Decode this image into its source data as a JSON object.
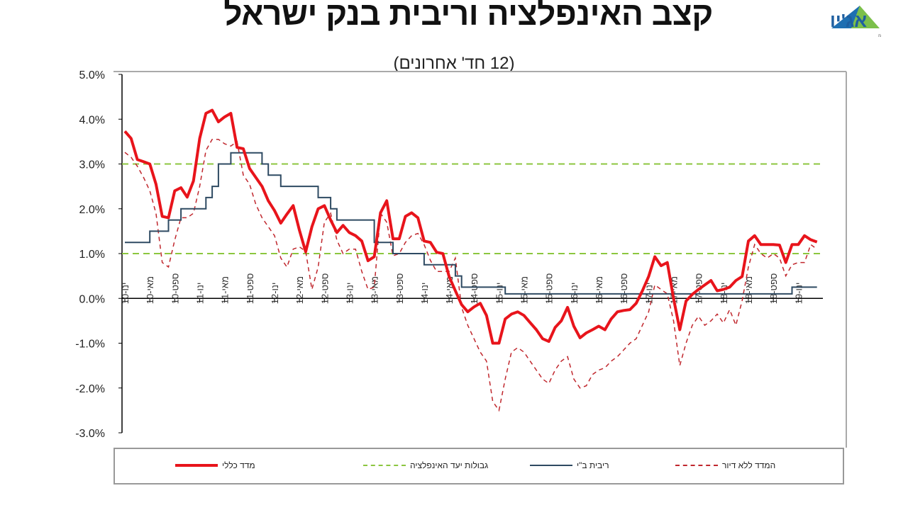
{
  "header": {
    "title": "קצב האינפלציה וריבית בנק ישראל",
    "subtitle": "(12 חד' אחרונים)",
    "logo_text": "אג'יו",
    "logo_tagline": "ניהול סיכונים והתחשבנות פיננסית בע\"מ"
  },
  "colors": {
    "cpi": "#e8141b",
    "target": "#8cc63f",
    "rate": "#2e4a62",
    "core": "#c0272d"
  },
  "chart_data": {
    "type": "line",
    "title": "קצב האינפלציה וריבית בנק ישראל",
    "subtitle": "(12 חד' אחרונים)",
    "xlabel": "",
    "ylabel": "",
    "x_start": "2010-01",
    "x_step": "month",
    "ylim": [
      -3.0,
      5.0
    ],
    "y_ticks": [
      "-3.0%",
      "-2.0%",
      "-1.0%",
      "0.0%",
      "1.0%",
      "2.0%",
      "3.0%",
      "4.0%",
      "5.0%"
    ],
    "x_tick_labels": [
      "ינו-10",
      "מאי-10",
      "ספט-10",
      "ינו-11",
      "מאי-11",
      "ספט-11",
      "ינו-12",
      "מאי-12",
      "ספט-12",
      "ינו-13",
      "מאי-13",
      "ספט-13",
      "ינו-14",
      "מאי-14",
      "ספט-14",
      "ינו-15",
      "מאי-15",
      "ספט-15",
      "ינו-16",
      "מאי-16",
      "ספט-16",
      "ינו-17",
      "מאי-17",
      "ספט-17",
      "ינו-18",
      "מאי-18",
      "ספט-18",
      "ינו-19"
    ],
    "legend_position": "bottom",
    "series": [
      {
        "name": "מדד כללי",
        "style": "solid-thick",
        "values": [
          3.73,
          3.57,
          3.1,
          3.05,
          3.0,
          2.55,
          1.83,
          1.8,
          2.4,
          2.47,
          2.26,
          2.62,
          3.57,
          4.13,
          4.2,
          3.94,
          4.05,
          4.13,
          3.37,
          3.34,
          2.9,
          2.7,
          2.5,
          2.18,
          1.96,
          1.68,
          1.88,
          2.07,
          1.52,
          1.04,
          1.6,
          2.0,
          2.07,
          1.75,
          1.47,
          1.63,
          1.47,
          1.4,
          1.28,
          0.84,
          0.93,
          1.91,
          2.18,
          1.33,
          1.33,
          1.83,
          1.91,
          1.8,
          1.28,
          1.25,
          1.03,
          1.0,
          0.49,
          0.17,
          -0.14,
          -0.3,
          -0.19,
          -0.11,
          -0.38,
          -1.0,
          -1.0,
          -0.46,
          -0.35,
          -0.3,
          -0.38,
          -0.54,
          -0.7,
          -0.9,
          -0.96,
          -0.65,
          -0.5,
          -0.2,
          -0.62,
          -0.88,
          -0.77,
          -0.7,
          -0.62,
          -0.7,
          -0.46,
          -0.3,
          -0.27,
          -0.25,
          -0.11,
          0.17,
          0.49,
          0.93,
          0.73,
          0.8,
          0.0,
          -0.7,
          -0.06,
          0.09,
          0.2,
          0.3,
          0.4,
          0.17,
          0.2,
          0.25,
          0.4,
          0.49,
          1.28,
          1.4,
          1.2,
          1.2,
          1.2,
          1.19,
          0.8,
          1.2,
          1.2,
          1.4,
          1.31,
          1.26
        ]
      },
      {
        "name": "גבולות יעד האינפלציה",
        "style": "dashed-green",
        "values_lower": 1.0,
        "values_upper": 3.0
      },
      {
        "name": "ריבית ב\"י",
        "style": "solid-thin",
        "values": [
          1.25,
          1.25,
          1.25,
          1.25,
          1.5,
          1.5,
          1.5,
          1.75,
          1.75,
          2.0,
          2.0,
          2.0,
          2.0,
          2.25,
          2.5,
          3.0,
          3.0,
          3.25,
          3.25,
          3.25,
          3.25,
          3.25,
          3.0,
          2.75,
          2.75,
          2.5,
          2.5,
          2.5,
          2.5,
          2.5,
          2.5,
          2.25,
          2.25,
          2.0,
          1.75,
          1.75,
          1.75,
          1.75,
          1.75,
          1.75,
          1.25,
          1.25,
          1.25,
          1.0,
          1.0,
          1.0,
          1.0,
          1.0,
          0.75,
          0.75,
          0.75,
          0.75,
          0.75,
          0.5,
          0.25,
          0.25,
          0.25,
          0.25,
          0.25,
          0.25,
          0.25,
          0.1,
          0.1,
          0.1,
          0.1,
          0.1,
          0.1,
          0.1,
          0.1,
          0.1,
          0.1,
          0.1,
          0.1,
          0.1,
          0.1,
          0.1,
          0.1,
          0.1,
          0.1,
          0.1,
          0.1,
          0.1,
          0.1,
          0.1,
          0.1,
          0.1,
          0.1,
          0.1,
          0.1,
          0.1,
          0.1,
          0.1,
          0.1,
          0.1,
          0.1,
          0.1,
          0.1,
          0.1,
          0.1,
          0.1,
          0.1,
          0.1,
          0.1,
          0.1,
          0.1,
          0.1,
          0.1,
          0.25,
          0.25,
          0.25,
          0.25,
          0.25
        ]
      },
      {
        "name": "המדד ללא דיור",
        "style": "dashed-red",
        "values": [
          3.26,
          3.15,
          2.95,
          2.7,
          2.4,
          1.9,
          0.8,
          0.7,
          1.3,
          1.8,
          1.8,
          1.9,
          2.5,
          3.3,
          3.55,
          3.55,
          3.45,
          3.4,
          3.5,
          2.75,
          2.55,
          2.1,
          1.8,
          1.6,
          1.4,
          0.9,
          0.7,
          1.1,
          1.15,
          1.05,
          0.2,
          0.7,
          1.7,
          1.9,
          1.3,
          1.0,
          1.1,
          1.1,
          0.6,
          0.2,
          0.25,
          1.9,
          1.7,
          0.95,
          1.0,
          1.25,
          1.4,
          1.45,
          1.2,
          0.85,
          0.6,
          0.6,
          0.6,
          0.9,
          -0.2,
          -0.6,
          -0.9,
          -1.2,
          -1.4,
          -2.3,
          -2.5,
          -1.8,
          -1.2,
          -1.1,
          -1.2,
          -1.4,
          -1.6,
          -1.8,
          -1.9,
          -1.6,
          -1.4,
          -1.3,
          -1.8,
          -2.0,
          -1.95,
          -1.7,
          -1.6,
          -1.55,
          -1.4,
          -1.3,
          -1.15,
          -1.0,
          -0.9,
          -0.6,
          -0.3,
          0.3,
          0.2,
          0.1,
          -0.5,
          -1.5,
          -1.0,
          -0.6,
          -0.4,
          -0.6,
          -0.5,
          -0.35,
          -0.55,
          -0.25,
          -0.6,
          -0.05,
          0.7,
          1.2,
          1.0,
          0.9,
          1.0,
          0.9,
          0.5,
          0.75,
          0.8,
          0.8,
          1.2,
          1.1
        ]
      }
    ]
  },
  "legend": {
    "cpi": "מדד כללי",
    "target": "גבולות יעד האינפלציה",
    "rate": "ריבית ב\"י",
    "core": "המדד ללא דיור"
  }
}
